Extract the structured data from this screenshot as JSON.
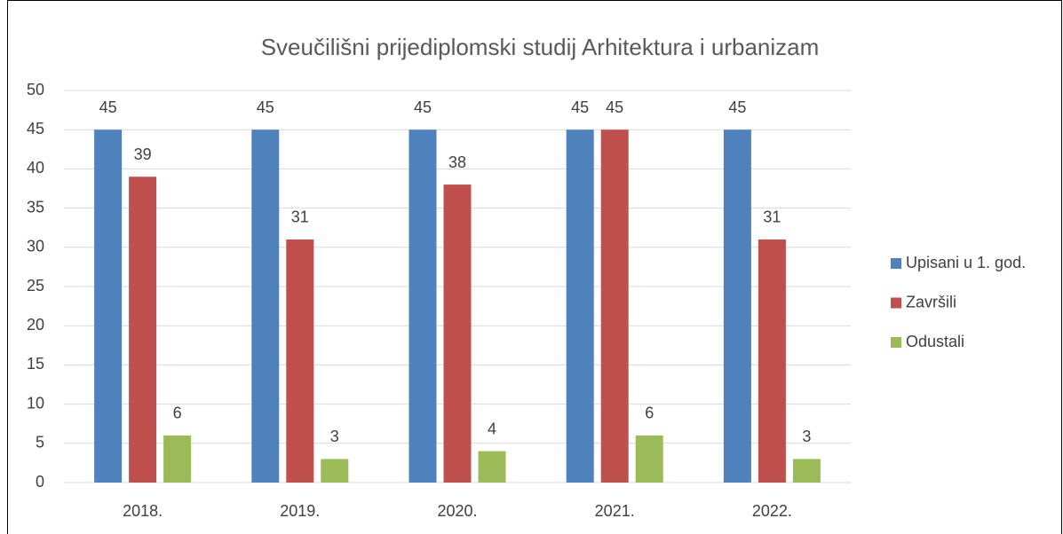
{
  "chart_data": {
    "type": "bar",
    "title": "Sveučilišni prijediplomski studij Arhitektura i urbanizam",
    "categories": [
      "2018.",
      "2019.",
      "2020.",
      "2021.",
      "2022."
    ],
    "series": [
      {
        "name": "Upisani u 1. god.",
        "color": "#4f81bd",
        "values": [
          45,
          45,
          45,
          45,
          45
        ]
      },
      {
        "name": "Završili",
        "color": "#c0504d",
        "values": [
          39,
          31,
          38,
          45,
          31
        ]
      },
      {
        "name": "Odustali",
        "color": "#9bbb59",
        "values": [
          6,
          3,
          4,
          6,
          3
        ]
      }
    ],
    "ylim": [
      0,
      50
    ],
    "yticks": [
      0,
      5,
      10,
      15,
      20,
      25,
      30,
      35,
      40,
      45,
      50
    ],
    "grid": true,
    "legend": "right"
  }
}
